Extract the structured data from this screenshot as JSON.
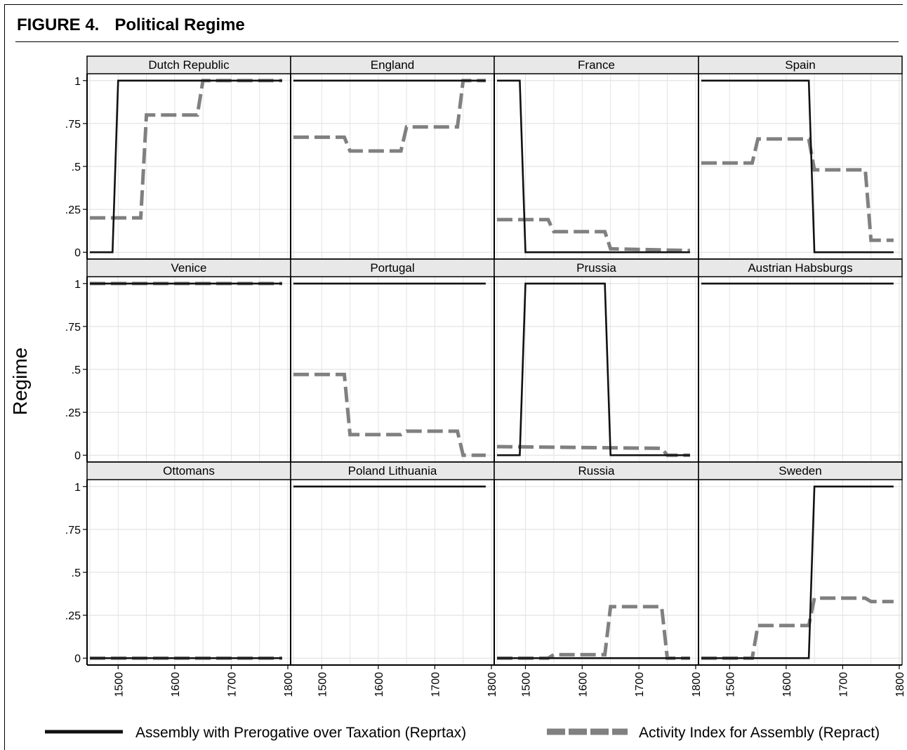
{
  "figure": {
    "number": "FIGURE 4.",
    "title": "Political Regime"
  },
  "chart_data": {
    "type": "line",
    "ylabel": "Regime",
    "xlabel": "",
    "xlim": [
      1445,
      1805
    ],
    "ylim": [
      -0.04,
      1.04
    ],
    "xticks": [
      "1500",
      "1600",
      "1700",
      "1800"
    ],
    "yticks": [
      "0",
      ".25",
      ".5",
      ".75",
      "1"
    ],
    "grid": true,
    "layout": "3x4 panels",
    "legend_position": "bottom",
    "series_meta": [
      {
        "name": "Assembly with Prerogative over Taxation (Reprtax)",
        "color": "#111111",
        "style": "solid"
      },
      {
        "name": "Activity Index for Assembly (Repract)",
        "color": "#808080",
        "style": "dashed"
      }
    ],
    "panels": [
      {
        "name": "Dutch Republic",
        "reprtax": [
          [
            1450,
            0
          ],
          [
            1490,
            0
          ],
          [
            1500,
            1
          ],
          [
            1790,
            1
          ]
        ],
        "repract": [
          [
            1450,
            0.2
          ],
          [
            1540,
            0.2
          ],
          [
            1550,
            0.8
          ],
          [
            1640,
            0.8
          ],
          [
            1650,
            1
          ],
          [
            1790,
            1
          ]
        ]
      },
      {
        "name": "England",
        "reprtax": [
          [
            1450,
            1
          ],
          [
            1790,
            1
          ]
        ],
        "repract": [
          [
            1450,
            0.67
          ],
          [
            1540,
            0.67
          ],
          [
            1550,
            0.59
          ],
          [
            1640,
            0.59
          ],
          [
            1650,
            0.73
          ],
          [
            1740,
            0.73
          ],
          [
            1750,
            1
          ],
          [
            1790,
            1
          ]
        ]
      },
      {
        "name": "France",
        "reprtax": [
          [
            1450,
            1
          ],
          [
            1490,
            1
          ],
          [
            1500,
            0
          ],
          [
            1790,
            0
          ]
        ],
        "repract": [
          [
            1450,
            0.19
          ],
          [
            1540,
            0.19
          ],
          [
            1550,
            0.12
          ],
          [
            1640,
            0.12
          ],
          [
            1650,
            0.02
          ],
          [
            1790,
            0.01
          ]
        ]
      },
      {
        "name": "Spain",
        "reprtax": [
          [
            1450,
            1
          ],
          [
            1640,
            1
          ],
          [
            1650,
            0
          ],
          [
            1790,
            0
          ]
        ],
        "repract": [
          [
            1450,
            0.52
          ],
          [
            1540,
            0.52
          ],
          [
            1550,
            0.66
          ],
          [
            1640,
            0.66
          ],
          [
            1650,
            0.48
          ],
          [
            1740,
            0.48
          ],
          [
            1750,
            0.07
          ],
          [
            1790,
            0.07
          ]
        ]
      },
      {
        "name": "Venice",
        "reprtax": [
          [
            1450,
            1
          ],
          [
            1790,
            1
          ]
        ],
        "repract": [
          [
            1450,
            1
          ],
          [
            1790,
            1
          ]
        ]
      },
      {
        "name": "Portugal",
        "reprtax": [
          [
            1450,
            1
          ],
          [
            1790,
            1
          ]
        ],
        "repract": [
          [
            1450,
            0.47
          ],
          [
            1540,
            0.47
          ],
          [
            1550,
            0.12
          ],
          [
            1640,
            0.12
          ],
          [
            1650,
            0.14
          ],
          [
            1740,
            0.14
          ],
          [
            1750,
            0
          ],
          [
            1790,
            0
          ]
        ]
      },
      {
        "name": "Prussia",
        "reprtax": [
          [
            1450,
            0
          ],
          [
            1490,
            0
          ],
          [
            1500,
            1
          ],
          [
            1640,
            1
          ],
          [
            1650,
            0
          ],
          [
            1790,
            0
          ]
        ],
        "repract": [
          [
            1450,
            0.05
          ],
          [
            1740,
            0.04
          ],
          [
            1750,
            0
          ],
          [
            1790,
            0
          ]
        ]
      },
      {
        "name": "Austrian Habsburgs",
        "reprtax": [
          [
            1450,
            1
          ],
          [
            1790,
            1
          ]
        ],
        "repract": []
      },
      {
        "name": "Ottomans",
        "reprtax": [
          [
            1450,
            0
          ],
          [
            1790,
            0
          ]
        ],
        "repract": [
          [
            1450,
            0
          ],
          [
            1790,
            0
          ]
        ]
      },
      {
        "name": "Poland Lithuania",
        "reprtax": [
          [
            1450,
            1
          ],
          [
            1790,
            1
          ]
        ],
        "repract": []
      },
      {
        "name": "Russia",
        "reprtax": [
          [
            1450,
            0
          ],
          [
            1790,
            0
          ]
        ],
        "repract": [
          [
            1450,
            0
          ],
          [
            1540,
            0
          ],
          [
            1550,
            0.02
          ],
          [
            1640,
            0.02
          ],
          [
            1650,
            0.3
          ],
          [
            1740,
            0.3
          ],
          [
            1750,
            0
          ],
          [
            1790,
            0
          ]
        ]
      },
      {
        "name": "Sweden",
        "reprtax": [
          [
            1450,
            0
          ],
          [
            1640,
            0
          ],
          [
            1650,
            1
          ],
          [
            1790,
            1
          ]
        ],
        "repract": [
          [
            1450,
            0
          ],
          [
            1540,
            0
          ],
          [
            1550,
            0.19
          ],
          [
            1640,
            0.19
          ],
          [
            1650,
            0.35
          ],
          [
            1740,
            0.35
          ],
          [
            1750,
            0.33
          ],
          [
            1790,
            0.33
          ]
        ]
      }
    ]
  }
}
